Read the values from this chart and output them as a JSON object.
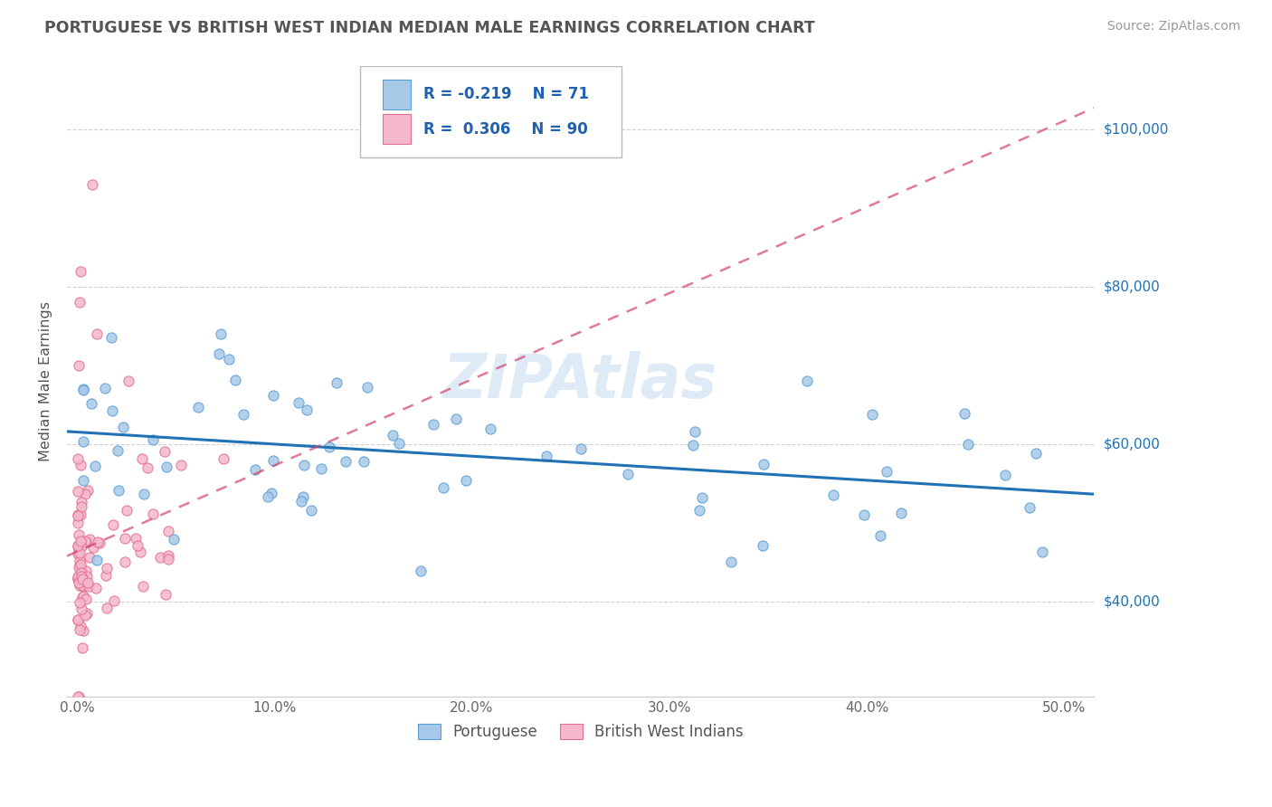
{
  "title": "PORTUGUESE VS BRITISH WEST INDIAN MEDIAN MALE EARNINGS CORRELATION CHART",
  "source_text": "Source: ZipAtlas.com",
  "ylabel": "Median Male Earnings",
  "x_tick_labels": [
    "0.0%",
    "10.0%",
    "20.0%",
    "30.0%",
    "40.0%",
    "50.0%"
  ],
  "x_tick_values": [
    0.0,
    10.0,
    20.0,
    30.0,
    40.0,
    50.0
  ],
  "y_tick_labels": [
    "$40,000",
    "$60,000",
    "$80,000",
    "$100,000"
  ],
  "y_tick_values": [
    40000,
    60000,
    80000,
    100000
  ],
  "y_min": 28000,
  "y_max": 108000,
  "x_min": -0.5,
  "x_max": 51.5,
  "blue_scatter_color": "#a8c8e8",
  "blue_scatter_edge": "#5a9fd4",
  "pink_scatter_color": "#f5b8cb",
  "pink_scatter_edge": "#e07090",
  "blue_line_color": "#2171b5",
  "pink_line_color": "#d44070",
  "legend_R1": "-0.219",
  "legend_N1": "71",
  "legend_R2": "0.306",
  "legend_N2": "90",
  "title_color": "#555555",
  "axis_label_color": "#2171b5",
  "watermark": "ZIPAtlas",
  "watermark_color": "#c8dff0"
}
